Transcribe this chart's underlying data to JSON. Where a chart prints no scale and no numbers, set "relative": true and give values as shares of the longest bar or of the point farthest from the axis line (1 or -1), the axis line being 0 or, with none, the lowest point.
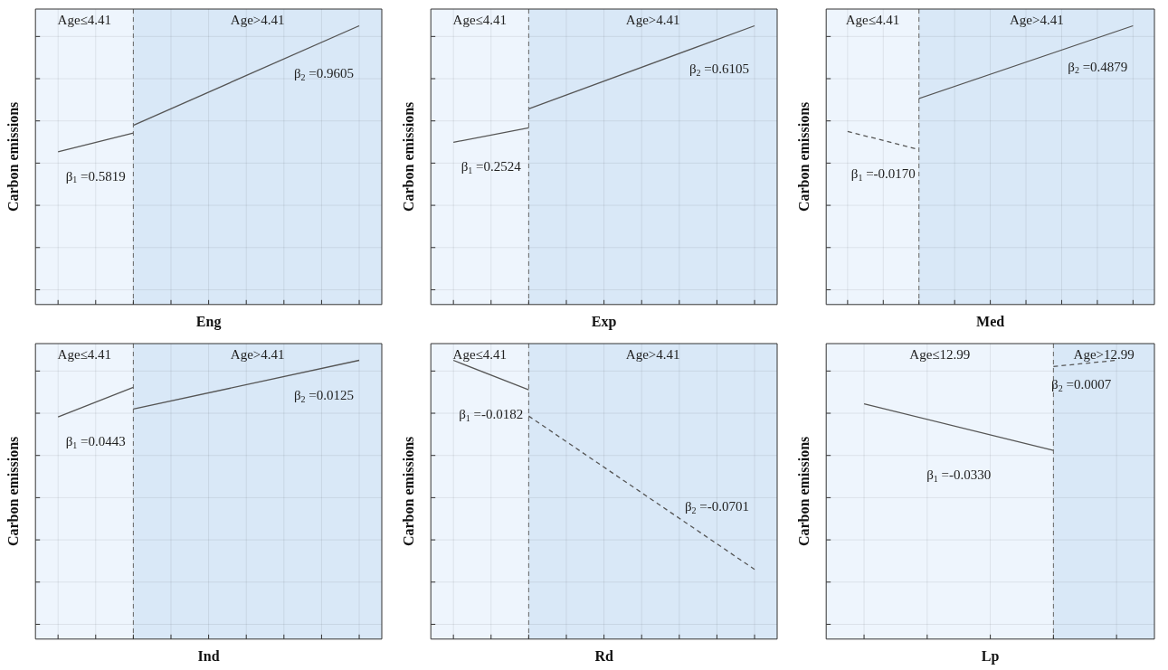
{
  "chart_data": [
    {
      "type": "line",
      "relative": true,
      "grid": true,
      "tick_labels": false,
      "xlabel": "Eng",
      "ylabel": "Carbon emissions",
      "categories": [
        null,
        null,
        null,
        null,
        null,
        null,
        null,
        null,
        null
      ],
      "series": [
        {
          "color": "#555555",
          "line_style": "solid",
          "values": [
            0.548,
            null,
            0.615,
            null,
            null,
            null,
            null,
            null,
            null
          ]
        },
        {
          "color": "#555555",
          "line_style": "solid",
          "values": [
            null,
            null,
            0.643,
            null,
            null,
            null,
            null,
            null,
            1
          ]
        }
      ],
      "annotations": [
        "Age≤4.41",
        "Age>4.41",
        "β$_{1}$ =0.5819",
        "β$_{2}$ =0.9605"
      ]
    },
    {
      "type": "line",
      "relative": true,
      "grid": true,
      "tick_labels": false,
      "xlabel": "Exp",
      "ylabel": "Carbon emissions",
      "categories": [
        null,
        null,
        null,
        null,
        null,
        null,
        null,
        null,
        null
      ],
      "series": [
        {
          "color": "#555555",
          "line_style": "solid",
          "values": [
            0.582,
            null,
            0.634,
            null,
            null,
            null,
            null,
            null,
            null
          ]
        },
        {
          "color": "#555555",
          "line_style": "solid",
          "values": [
            null,
            null,
            0.702,
            null,
            null,
            null,
            null,
            null,
            1
          ]
        }
      ],
      "annotations": [
        "Age≤4.41",
        "Age>4.41",
        "β$_{1}$ =0.2524",
        "β$_{2}$ =0.6105"
      ]
    },
    {
      "type": "line",
      "relative": true,
      "grid": true,
      "tick_labels": false,
      "xlabel": "Med",
      "ylabel": "Carbon emissions",
      "categories": [
        null,
        null,
        null,
        null,
        null,
        null,
        null,
        null,
        null
      ],
      "series": [
        {
          "color": "#555555",
          "line_style": "dashed",
          "values": [
            0.621,
            null,
            0.556,
            null,
            null,
            null,
            null,
            null,
            null
          ]
        },
        {
          "color": "#555555",
          "line_style": "solid",
          "values": [
            null,
            null,
            0.739,
            null,
            null,
            null,
            null,
            null,
            1
          ]
        }
      ],
      "annotations": [
        "Age≤4.41",
        "Age>4.41",
        "β$_{1}$ =-0.0170",
        "β$_{2}$ =0.4879"
      ]
    },
    {
      "type": "line",
      "relative": true,
      "grid": true,
      "tick_labels": false,
      "xlabel": "Ind",
      "ylabel": "Carbon emissions",
      "categories": [
        null,
        null,
        null,
        null,
        null,
        null,
        null,
        null,
        null
      ],
      "series": [
        {
          "color": "#555555",
          "line_style": "solid",
          "values": [
            0.797,
            null,
            0.903,
            null,
            null,
            null,
            null,
            null,
            null
          ]
        },
        {
          "color": "#555555",
          "line_style": "solid",
          "values": [
            null,
            null,
            0.825,
            null,
            null,
            null,
            null,
            null,
            1
          ]
        }
      ],
      "annotations": [
        "Age≤4.41",
        "Age>4.41",
        "β$_{1}$ =0.0443",
        "β$_{2}$ =0.0125"
      ]
    },
    {
      "type": "line",
      "relative": true,
      "grid": true,
      "tick_labels": false,
      "xlabel": "Rd",
      "ylabel": "Carbon emissions",
      "categories": [
        null,
        null,
        null,
        null,
        null,
        null,
        null,
        null,
        null
      ],
      "series": [
        {
          "color": "#555555",
          "line_style": "solid",
          "values": [
            1,
            null,
            0.894,
            null,
            null,
            null,
            null,
            null,
            null
          ]
        },
        {
          "color": "#555555",
          "line_style": "dashed",
          "values": [
            null,
            null,
            0.8,
            null,
            null,
            null,
            null,
            null,
            0.25
          ]
        }
      ],
      "annotations": [
        "Age≤4.41",
        "Age>4.41",
        "β$_{1}$ =-0.0182",
        "β$_{2}$ =-0.0701"
      ]
    },
    {
      "type": "line",
      "relative": true,
      "grid": true,
      "tick_labels": false,
      "xlabel": "Lp",
      "ylabel": "Carbon emissions",
      "categories": [
        null,
        null,
        null,
        null,
        null
      ],
      "series": [
        {
          "color": "#555555",
          "line_style": "solid",
          "values": [
            0.844,
            null,
            null,
            0.677,
            null
          ]
        },
        {
          "color": "#555555",
          "line_style": "dashed",
          "values": [
            null,
            null,
            null,
            0.978,
            1
          ]
        }
      ],
      "annotations": [
        "Age≤12.99",
        "Age>12.99",
        "β$_{1}$ =-0.0330",
        "β$_{2}$ =0.0007"
      ]
    }
  ]
}
